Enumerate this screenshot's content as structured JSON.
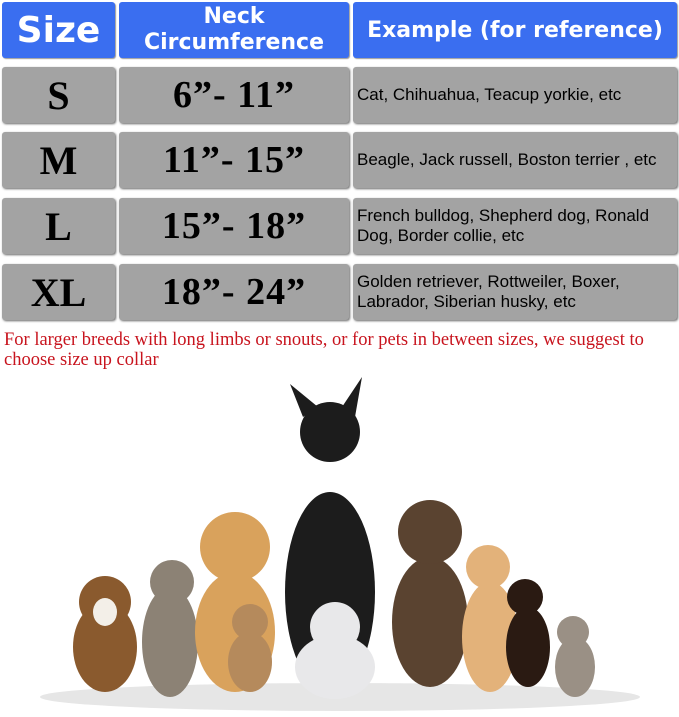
{
  "header": {
    "size": "Size",
    "neck": "Neck Circumference",
    "example": "Example (for reference)"
  },
  "rows": [
    {
      "size": "S",
      "neck": "6”- 11”",
      "example": "Cat, Chihuahua, Teacup yorkie, etc"
    },
    {
      "size": "M",
      "neck": "11”- 15”",
      "example": "Beagle, Jack russell, Boston terrier , etc"
    },
    {
      "size": "L",
      "neck": "15”- 18”",
      "example": "French bulldog, Shepherd dog, Ronald Dog, Border collie, etc"
    },
    {
      "size": "XL",
      "neck": "18”- 24”",
      "example": "Golden retriever, Rottweiler, Boxer, Labrador, Siberian husky, etc"
    }
  ],
  "note": "For larger breeds with long limbs or snouts, or for pets in between sizes, we suggest to choose size up collar",
  "colors": {
    "header": "#3a6ef0",
    "row": "#a3a3a3",
    "note": "#c8141e"
  }
}
